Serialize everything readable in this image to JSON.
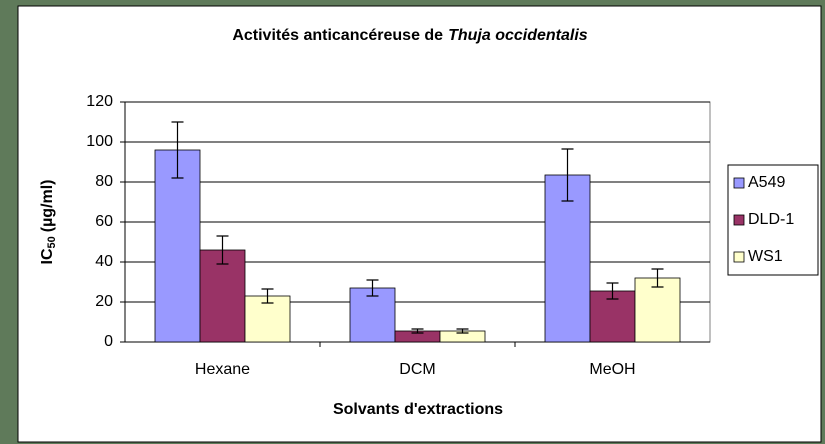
{
  "chart_data": {
    "type": "bar",
    "title": [
      "Activités anticancéreuse de",
      "Thuja occidentalis"
    ],
    "x_label": "Solvants d'extractions",
    "y_label": [
      "IC",
      "50",
      "(µg/ml)"
    ],
    "categories": [
      "Hexane",
      "DCM",
      "MeOH"
    ],
    "series": [
      {
        "name": "A549",
        "color": "#9999ff",
        "values": [
          96,
          27,
          83.5
        ],
        "errors": [
          14,
          4,
          13
        ]
      },
      {
        "name": "DLD-1",
        "color": "#993366",
        "values": [
          46,
          5.5,
          25.5
        ],
        "errors": [
          7,
          1,
          4
        ]
      },
      {
        "name": "WS1",
        "color": "#ffffcc",
        "values": [
          23,
          5.5,
          32
        ],
        "errors": [
          3.5,
          1,
          4.5
        ]
      }
    ],
    "ylim": [
      0,
      120
    ],
    "yticks": [
      0,
      20,
      40,
      60,
      80,
      100,
      120
    ],
    "grid": true,
    "legend": "right"
  }
}
